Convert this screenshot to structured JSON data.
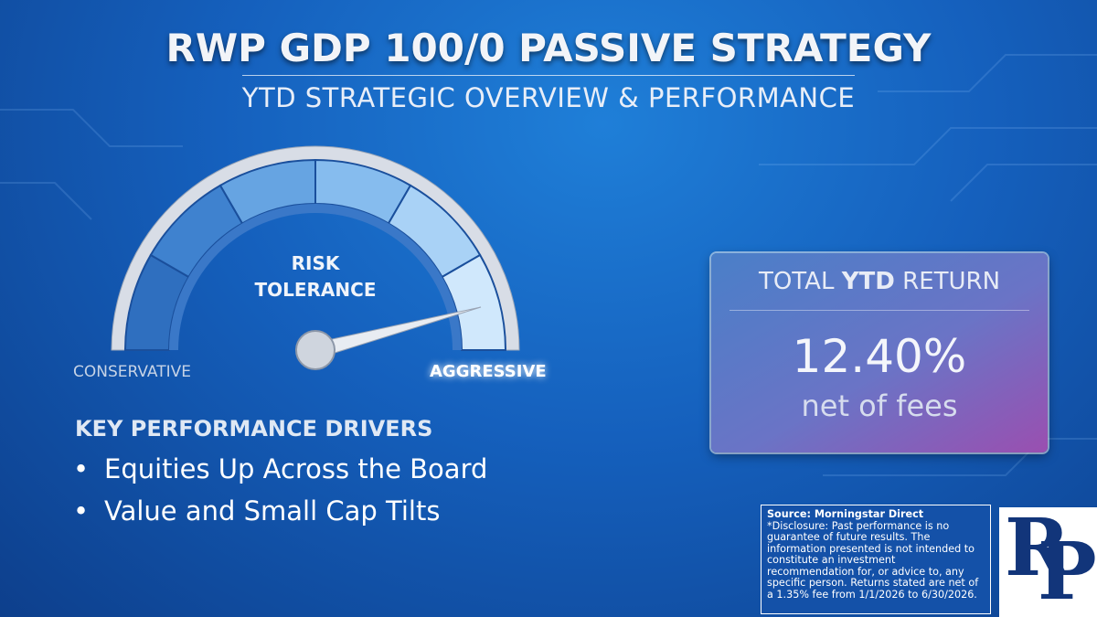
{
  "header": {
    "title": "RWP GDP 100/0 PASSIVE STRATEGY",
    "subtitle": "YTD STRATEGIC OVERVIEW & PERFORMANCE"
  },
  "gauge": {
    "label_lines": [
      "RISK",
      "TOLERANCE"
    ],
    "left_label": "CONSERVATIVE",
    "right_label": "AGGRESSIVE"
  },
  "drivers": {
    "heading": "KEY PERFORMANCE DRIVERS",
    "items": [
      "Equities Up Across the Board",
      "Value and Small Cap Tilts"
    ]
  },
  "return_box": {
    "heading_parts": [
      "TOTAL",
      "YTD",
      "RETURN"
    ],
    "value": "12.40%",
    "note": "net of fees"
  },
  "disclosure": {
    "source": "Source: Morningstar Direct",
    "text": "*Disclosure: Past performance is no guarantee of future results. The information presented is not intended to constitute an investment recommendation for, or advice to, any specific person. Returns stated are net of a 1.35% fee from 1/1/2026 to 6/30/2026."
  },
  "logo_letters": [
    "R",
    "P"
  ]
}
